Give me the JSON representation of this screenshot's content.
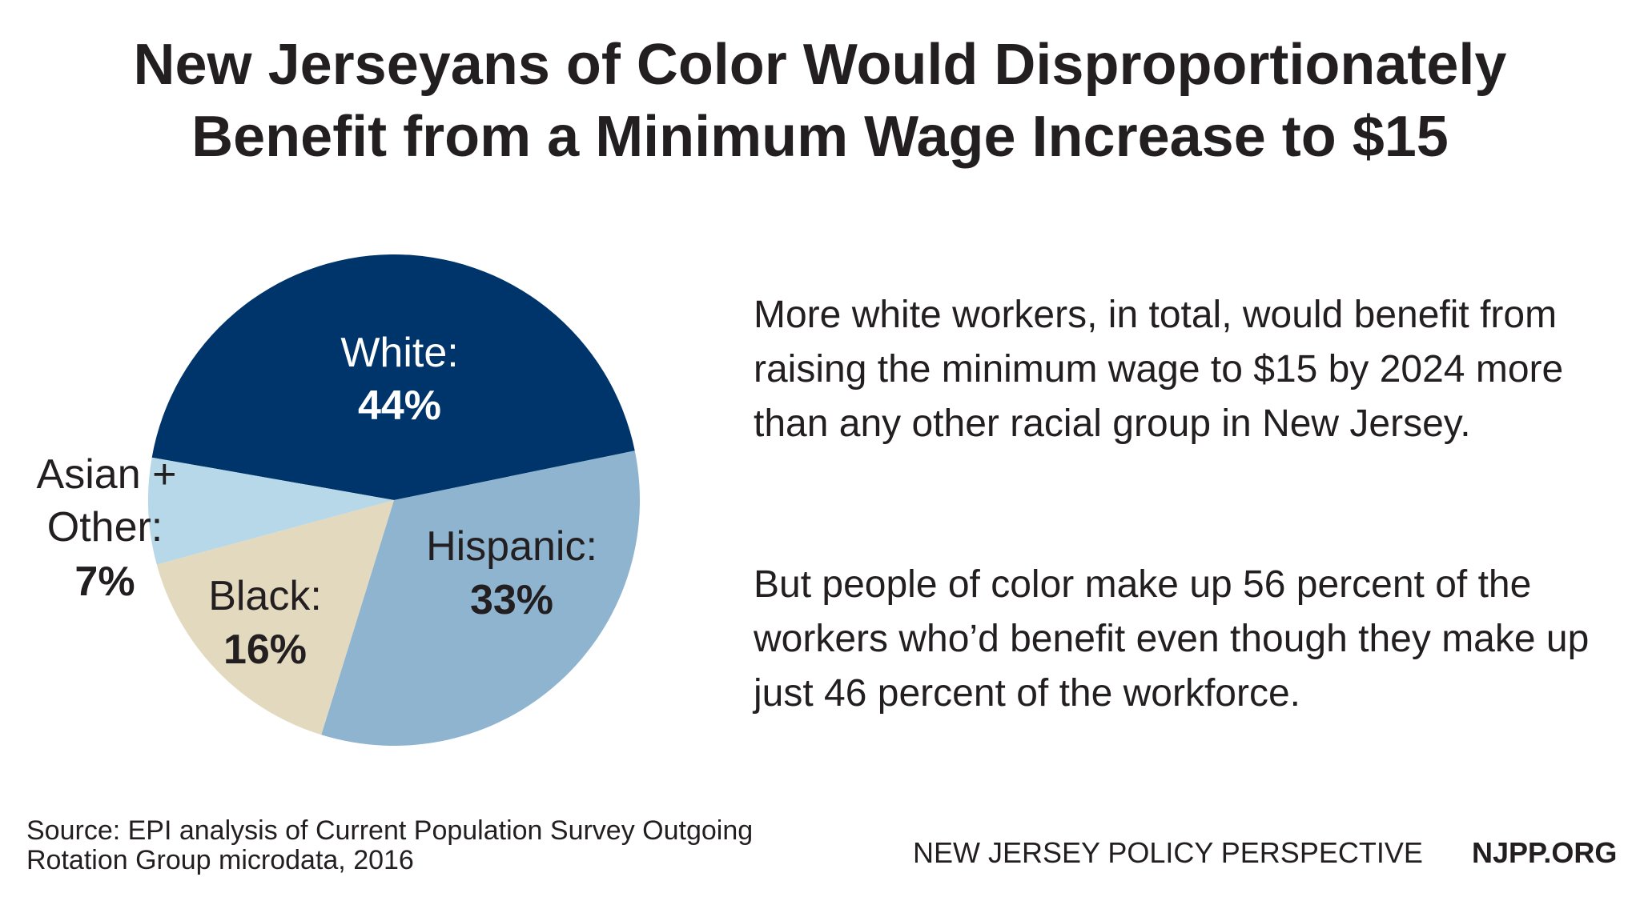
{
  "chart_data": {
    "type": "pie",
    "title": [
      "New Jerseyans of Color Would Disproportionately",
      "Benefit from a Minimum Wage Increase to $15"
    ],
    "slices": [
      {
        "label": "White:",
        "value": 44,
        "value_label": "44%",
        "color": "#00356b",
        "text_color": "#ffffff"
      },
      {
        "label": "Hispanic:",
        "value": 33,
        "value_label": "33%",
        "color": "#8fb4cf",
        "text_color": "#231f20"
      },
      {
        "label": "Black:",
        "value": 16,
        "value_label": "16%",
        "color": "#e3d9bf",
        "text_color": "#231f20"
      },
      {
        "label": "Asian + Other:",
        "label_lines": [
          "Asian +",
          "Other:"
        ],
        "value": 7,
        "value_label": "7%",
        "color": "#b6d8e8",
        "text_color": "#231f20"
      }
    ]
  },
  "text": {
    "paragraph1": "More white workers, in total, would benefit from raising the minimum wage to $15 by 2024 more than any other racial group in New Jersey.",
    "paragraph2": "But people of color make up 56 percent of the workers who’d benefit even though they make up just 46 percent of the workforce."
  },
  "footer": {
    "source_line1": "Source: EPI analysis of Current Population Survey Outgoing",
    "source_line2": "Rotation Group microdata, 2016",
    "org_name": "NEW JERSEY POLICY PERSPECTIVE",
    "org_url": "NJPP.ORG"
  }
}
